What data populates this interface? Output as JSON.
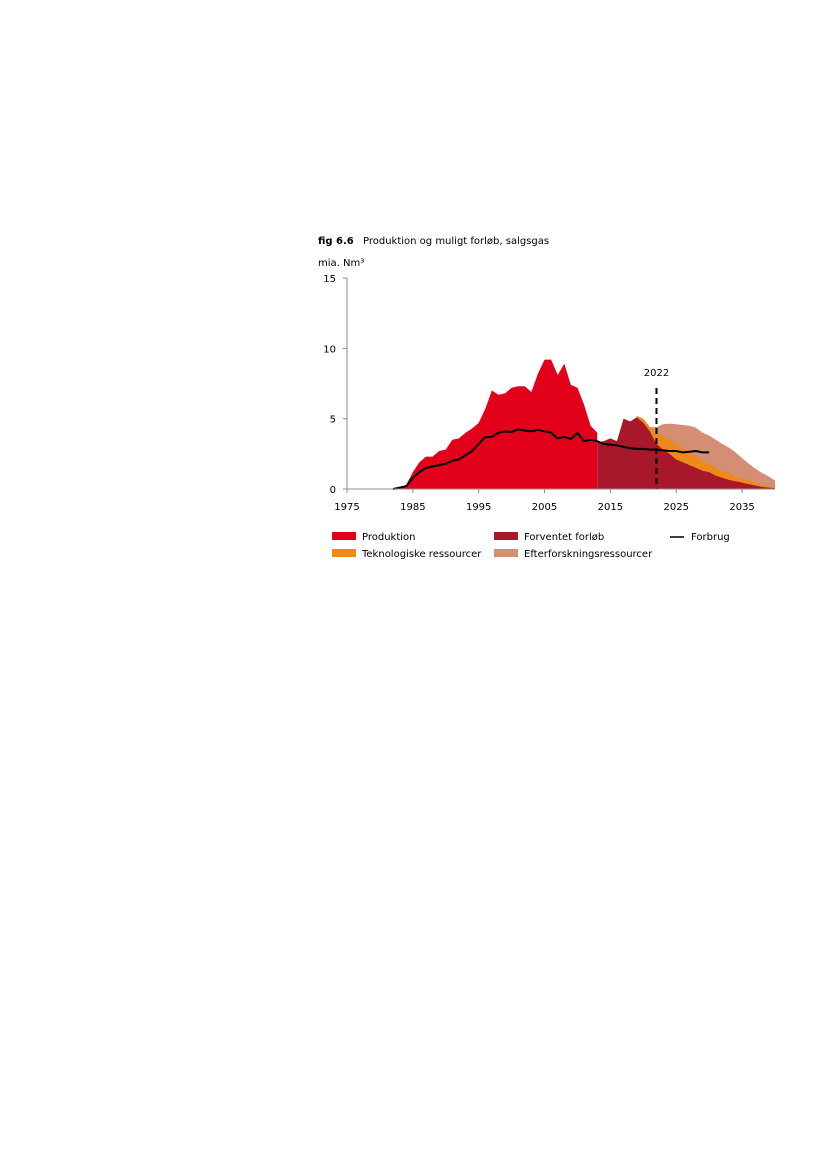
{
  "figure": {
    "number": "fig 6.6",
    "title": "Produktion og muligt forløb, salgsgas"
  },
  "chart_data": {
    "type": "area",
    "title": "Produktion og muligt forløb, salgsgas",
    "ylabel": "mia. Nm³",
    "xlabel": "",
    "xlim": [
      1975,
      2040
    ],
    "ylim": [
      0,
      15
    ],
    "x_ticks": [
      1975,
      1985,
      1995,
      2005,
      2015,
      2025,
      2035
    ],
    "y_ticks": [
      0,
      5,
      10,
      15
    ],
    "grid": false,
    "legend_position": "bottom",
    "colors": {
      "produktion": "#e2001a",
      "forventet": "#a8172a",
      "teknologiske": "#ee8a1c",
      "efterforskning": "#d38e74",
      "forbrug": "#000000",
      "axis": "#8c8c8c"
    },
    "annotation": {
      "x": 2022,
      "label": "2022"
    },
    "series": [
      {
        "key": "produktion",
        "name": "Produktion",
        "type": "area",
        "points": [
          [
            1982,
            0
          ],
          [
            1983,
            0.1
          ],
          [
            1984,
            0.3
          ],
          [
            1985,
            1.2
          ],
          [
            1986,
            1.9
          ],
          [
            1987,
            2.3
          ],
          [
            1988,
            2.3
          ],
          [
            1989,
            2.7
          ],
          [
            1990,
            2.8
          ],
          [
            1991,
            3.5
          ],
          [
            1992,
            3.6
          ],
          [
            1993,
            4.0
          ],
          [
            1994,
            4.3
          ],
          [
            1995,
            4.7
          ],
          [
            1996,
            5.7
          ],
          [
            1997,
            7.0
          ],
          [
            1998,
            6.7
          ],
          [
            1999,
            6.8
          ],
          [
            2000,
            7.2
          ],
          [
            2001,
            7.3
          ],
          [
            2002,
            7.3
          ],
          [
            2003,
            6.9
          ],
          [
            2004,
            8.2
          ],
          [
            2005,
            9.2
          ],
          [
            2006,
            9.2
          ],
          [
            2007,
            8.1
          ],
          [
            2008,
            8.9
          ],
          [
            2009,
            7.4
          ],
          [
            2010,
            7.2
          ],
          [
            2011,
            6.0
          ],
          [
            2012,
            4.5
          ],
          [
            2013,
            4.0
          ]
        ]
      },
      {
        "key": "forventet",
        "name": "Forventet forløb",
        "type": "area",
        "points": [
          [
            2013,
            3.3
          ],
          [
            2014,
            3.4
          ],
          [
            2015,
            3.6
          ],
          [
            2016,
            3.4
          ],
          [
            2017,
            5.0
          ],
          [
            2018,
            4.8
          ],
          [
            2019,
            5.1
          ],
          [
            2020,
            4.7
          ],
          [
            2021,
            4.1
          ],
          [
            2022,
            3.2
          ],
          [
            2023,
            2.8
          ],
          [
            2024,
            2.5
          ],
          [
            2025,
            2.1
          ],
          [
            2026,
            1.9
          ],
          [
            2027,
            1.7
          ],
          [
            2028,
            1.5
          ],
          [
            2029,
            1.3
          ],
          [
            2030,
            1.2
          ],
          [
            2031,
            0.95
          ],
          [
            2032,
            0.8
          ],
          [
            2033,
            0.65
          ],
          [
            2034,
            0.55
          ],
          [
            2035,
            0.45
          ],
          [
            2036,
            0.35
          ],
          [
            2037,
            0.25
          ],
          [
            2038,
            0.15
          ],
          [
            2039,
            0.1
          ],
          [
            2040,
            0.05
          ]
        ]
      },
      {
        "key": "teknologiske",
        "name": "Teknologiske ressourcer",
        "type": "area",
        "points": [
          [
            2019,
            5.2
          ],
          [
            2020,
            4.95
          ],
          [
            2021,
            4.4
          ],
          [
            2022,
            4.0
          ],
          [
            2023,
            3.8
          ],
          [
            2024,
            3.5
          ],
          [
            2025,
            3.2
          ],
          [
            2026,
            2.9
          ],
          [
            2027,
            2.6
          ],
          [
            2028,
            2.3
          ],
          [
            2029,
            2.0
          ],
          [
            2030,
            1.8
          ],
          [
            2031,
            1.5
          ],
          [
            2032,
            1.3
          ],
          [
            2033,
            1.1
          ],
          [
            2034,
            0.9
          ],
          [
            2035,
            0.75
          ],
          [
            2036,
            0.6
          ],
          [
            2037,
            0.45
          ],
          [
            2038,
            0.3
          ],
          [
            2039,
            0.2
          ],
          [
            2040,
            0.15
          ]
        ]
      },
      {
        "key": "efterforskning",
        "name": "Efterforskningsressourcer",
        "type": "area",
        "points": [
          [
            2019,
            5.2
          ],
          [
            2020,
            5.0
          ],
          [
            2021,
            4.4
          ],
          [
            2022,
            4.4
          ],
          [
            2023,
            4.6
          ],
          [
            2024,
            4.65
          ],
          [
            2025,
            4.6
          ],
          [
            2026,
            4.55
          ],
          [
            2027,
            4.5
          ],
          [
            2028,
            4.35
          ],
          [
            2029,
            4.0
          ],
          [
            2030,
            3.8
          ],
          [
            2031,
            3.5
          ],
          [
            2032,
            3.2
          ],
          [
            2033,
            2.95
          ],
          [
            2034,
            2.6
          ],
          [
            2035,
            2.2
          ],
          [
            2036,
            1.8
          ],
          [
            2037,
            1.45
          ],
          [
            2038,
            1.15
          ],
          [
            2039,
            0.9
          ],
          [
            2040,
            0.6
          ]
        ]
      },
      {
        "key": "forbrug",
        "name": "Forbrug",
        "type": "line",
        "points": [
          [
            1982,
            0
          ],
          [
            1984,
            0.2
          ],
          [
            1985,
            0.8
          ],
          [
            1986,
            1.2
          ],
          [
            1987,
            1.5
          ],
          [
            1988,
            1.6
          ],
          [
            1989,
            1.7
          ],
          [
            1990,
            1.8
          ],
          [
            1991,
            2.0
          ],
          [
            1992,
            2.1
          ],
          [
            1993,
            2.4
          ],
          [
            1994,
            2.7
          ],
          [
            1995,
            3.2
          ],
          [
            1996,
            3.7
          ],
          [
            1997,
            3.7
          ],
          [
            1998,
            4.0
          ],
          [
            1999,
            4.1
          ],
          [
            2000,
            4.05
          ],
          [
            2001,
            4.25
          ],
          [
            2002,
            4.15
          ],
          [
            2003,
            4.1
          ],
          [
            2004,
            4.2
          ],
          [
            2005,
            4.1
          ],
          [
            2006,
            4.0
          ],
          [
            2007,
            3.6
          ],
          [
            2008,
            3.7
          ],
          [
            2009,
            3.55
          ],
          [
            2010,
            4.0
          ],
          [
            2011,
            3.4
          ],
          [
            2012,
            3.5
          ],
          [
            2013,
            3.4
          ],
          [
            2014,
            3.2
          ],
          [
            2015,
            3.15
          ],
          [
            2016,
            3.1
          ],
          [
            2017,
            3.0
          ],
          [
            2018,
            2.9
          ],
          [
            2019,
            2.85
          ],
          [
            2020,
            2.85
          ],
          [
            2021,
            2.8
          ],
          [
            2022,
            2.8
          ],
          [
            2023,
            2.75
          ],
          [
            2024,
            2.7
          ],
          [
            2025,
            2.7
          ],
          [
            2026,
            2.6
          ],
          [
            2027,
            2.65
          ],
          [
            2028,
            2.7
          ],
          [
            2029,
            2.6
          ],
          [
            2030,
            2.6
          ]
        ]
      }
    ]
  }
}
